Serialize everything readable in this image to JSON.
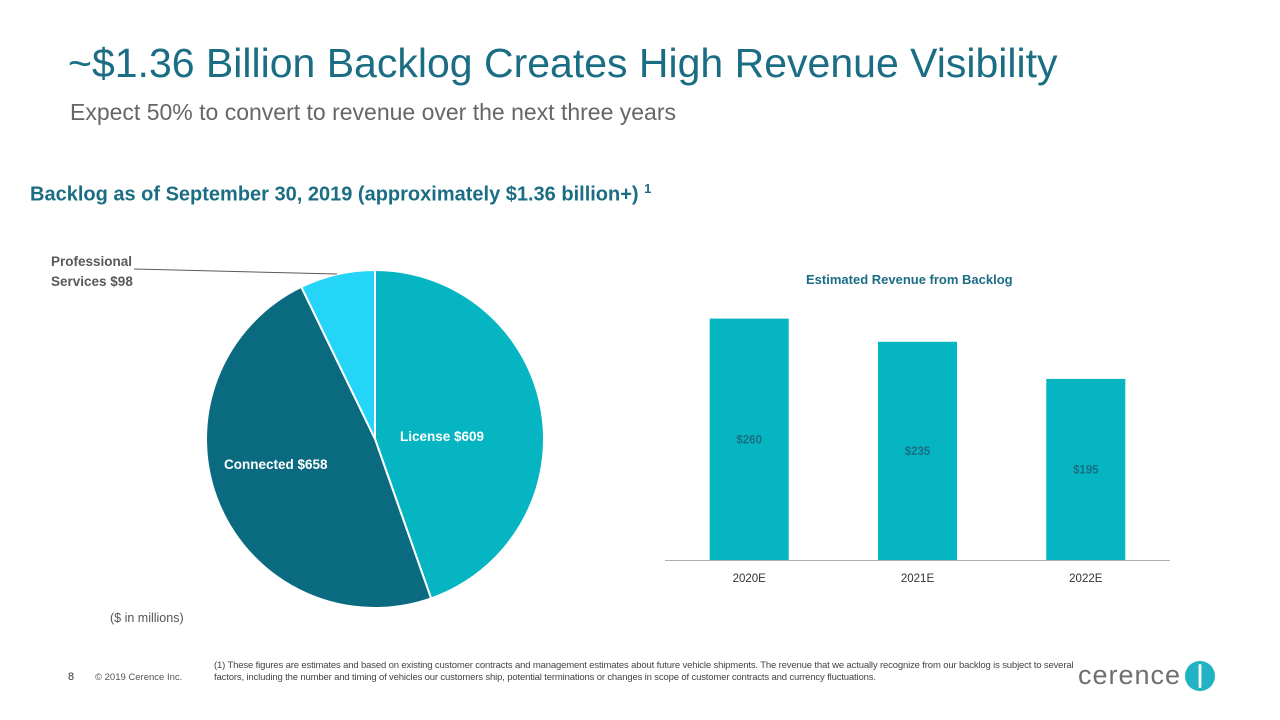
{
  "slide": {
    "title": "~$1.36 Billion Backlog Creates High Revenue Visibility",
    "subtitle": "Expect 50% to convert to revenue over the next three years",
    "section_title": "Backlog as of September 30, 2019 (approximately $1.36 billion+)",
    "section_footnote_ref": "1",
    "units_note": "($ in millions)",
    "page_number": "8",
    "copyright": "© 2019 Cerence Inc.",
    "footnote": "(1) These figures are estimates and based on existing customer contracts and management estimates about future vehicle shipments.  The revenue that we actually recognize from our backlog is subject to several factors, including the number and timing of vehicles our customers ship, potential terminations or changes in scope of customer contracts and currency fluctuations.",
    "logo_text": "cerence",
    "brand_color": "#1b6d84"
  },
  "chart_data": [
    {
      "type": "pie",
      "title": "Backlog as of September 30, 2019",
      "slices": [
        {
          "name": "License",
          "value": 609,
          "label": "License  $609",
          "color": "#05b5c1",
          "label_color": "#ffffff"
        },
        {
          "name": "Connected",
          "value": 658,
          "label": "Connected  $658",
          "color": "#0a6b80",
          "label_color": "#ffffff"
        },
        {
          "name": "Professional Services",
          "value": 98,
          "label_line1": "Professional",
          "label_line2": "Services  $98",
          "color": "#25d5f8",
          "label_color": "#595959"
        }
      ],
      "start": "12 o'clock",
      "direction": "clockwise"
    },
    {
      "type": "bar",
      "title": "Estimated Revenue from Backlog",
      "categories": [
        "2020E",
        "2021E",
        "2022E"
      ],
      "values": [
        260,
        235,
        195
      ],
      "data_labels": [
        "$260",
        "$235",
        "$195"
      ],
      "ylim": [
        0,
        280
      ],
      "color": "#05b5c1",
      "label_color": "#1b6d84",
      "axis_color": "#b0b0b0"
    }
  ]
}
